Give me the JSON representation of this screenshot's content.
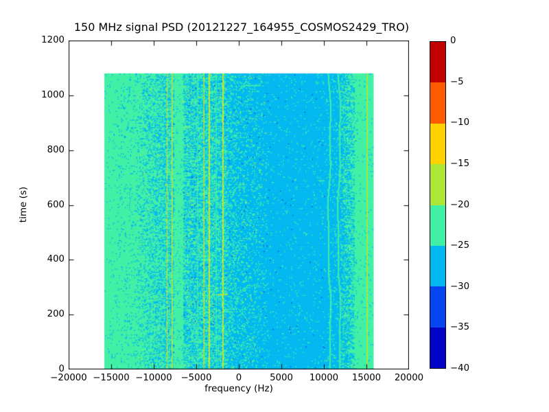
{
  "chart_data": {
    "type": "heatmap",
    "title": "150 MHz signal PSD (20121227_164955_COSMOS2429_TRO)",
    "xlabel": "frequency (Hz)",
    "ylabel": "time (s)",
    "xlim": [
      -20000,
      20000
    ],
    "ylim": [
      0,
      1200
    ],
    "grid": false,
    "xticks": {
      "values": [
        -20000,
        -15000,
        -10000,
        -5000,
        0,
        5000,
        10000,
        15000,
        20000
      ],
      "labels": [
        "−20000",
        "−15000",
        "−10000",
        "−5000",
        "0",
        "5000",
        "10000",
        "15000",
        "20000"
      ]
    },
    "yticks": {
      "values": [
        0,
        200,
        400,
        600,
        800,
        1000,
        1200
      ],
      "labels": [
        "0",
        "200",
        "400",
        "600",
        "800",
        "1000",
        "1200"
      ]
    },
    "colorbar": {
      "position": "right",
      "ticks": {
        "values": [
          0,
          -5,
          -10,
          -15,
          -20,
          -25,
          -30,
          -35,
          -40
        ],
        "labels": [
          "0",
          "−5",
          "−10",
          "−15",
          "−20",
          "−25",
          "−30",
          "−35",
          "−40"
        ]
      },
      "segments": [
        {
          "range": [
            0,
            -5
          ],
          "color": "#c20000"
        },
        {
          "range": [
            -5,
            -10
          ],
          "color": "#ff5a00"
        },
        {
          "range": [
            -10,
            -15
          ],
          "color": "#ffd200"
        },
        {
          "range": [
            -15,
            -20
          ],
          "color": "#aee637"
        },
        {
          "range": [
            -20,
            -25
          ],
          "color": "#41f0a5"
        },
        {
          "range": [
            -25,
            -30
          ],
          "color": "#00b8f0"
        },
        {
          "range": [
            -30,
            -35
          ],
          "color": "#0546f0"
        },
        {
          "range": [
            -35,
            -40
          ],
          "color": "#0101c8"
        }
      ]
    },
    "palette": {
      "green": "#41f0a5",
      "cyan": "#00b8f0",
      "yellowgreen": "#b9e634",
      "yellow": "#ffd200",
      "blue": "#0546f0",
      "lineBright": "#dcee30"
    },
    "extent": {
      "freq": [
        -15800,
        15800
      ],
      "time": [
        0,
        1080
      ]
    },
    "regions": [
      {
        "from": -15800,
        "to": -12000,
        "base": "green",
        "speck": "cyan",
        "d0": 0.02,
        "d1": 0.1
      },
      {
        "from": -12000,
        "to": -8600,
        "base": "green",
        "speck": "cyan",
        "d0": 0.12,
        "d1": 0.45,
        "rare": {
          "yellowgreen": 0.008
        }
      },
      {
        "from": -8600,
        "to": -7650,
        "base": "green",
        "speck": "cyan",
        "d0": 0.45,
        "d1": 0.3,
        "rare": {
          "yellowgreen": 0.012,
          "blue": 0.006
        }
      },
      {
        "from": -7650,
        "to": -6520,
        "base": "green",
        "speck": "cyan",
        "d0": 0.05,
        "d1": 0.05
      },
      {
        "from": -6520,
        "to": -1450,
        "base": "cyan",
        "speck": "green",
        "d0": 0.5,
        "d1": 0.42,
        "rare": {
          "yellowgreen": 0.018,
          "blue": 0.008
        }
      },
      {
        "from": -1450,
        "to": 3400,
        "base": "cyan",
        "speck": "green",
        "d0": 0.3,
        "d1": 0.08,
        "rare": {
          "yellowgreen": 0.004,
          "blue": 0.004
        }
      },
      {
        "from": 3400,
        "to": 10250,
        "base": "cyan",
        "speck": "green",
        "d0": 0.035,
        "d1": 0.03,
        "rare": {
          "blue": 0.003
        }
      },
      {
        "from": 10250,
        "to": 11900,
        "base": "cyan",
        "speck": "green",
        "d0": 0.05,
        "d1": 0.12
      },
      {
        "from": 11900,
        "to": 13650,
        "base": "cyan",
        "speck": "green",
        "d0": 0.22,
        "d1": 0.65,
        "rare": {
          "yellowgreen": 0.008
        }
      },
      {
        "from": 13650,
        "to": 15801,
        "base": "green",
        "speck": "cyan",
        "d0": 0.05,
        "d1": 0.03
      }
    ],
    "lines": [
      {
        "f": -8420,
        "w": 1.5,
        "color": "yellowgreen",
        "p": 0.72
      },
      {
        "f": -7840,
        "w": 1.5,
        "color": "yellowgreen",
        "p": 0.95
      },
      {
        "f": -4840,
        "w": 1.2,
        "color": "green",
        "p": 0.85
      },
      {
        "f": -4100,
        "w": 1.5,
        "color": "yellowgreen",
        "p": 0.9
      },
      {
        "f": -3470,
        "w": 2.0,
        "color": "yellowgreen",
        "p": 1.0,
        "bright": true
      },
      {
        "f": -2660,
        "w": 1.2,
        "color": "green",
        "p": 0.9
      },
      {
        "f": -1860,
        "w": 1.8,
        "color": "yellowgreen",
        "p": 1.0,
        "bright": true
      },
      {
        "f": 10640,
        "w": 2.0,
        "color": "green",
        "p": 1.0,
        "wiggle": true
      },
      {
        "f": 11790,
        "w": 2.0,
        "color": "green",
        "p": 1.0,
        "wiggle": true
      },
      {
        "f": 15080,
        "w": 1.6,
        "color": "yellowgreen",
        "p": 0.97
      }
    ],
    "artifacts": [
      {
        "t": 1038,
        "f0": 500,
        "f1": 2600,
        "color": "green"
      },
      {
        "t": 690,
        "f0": 9300,
        "f1": 10100,
        "color": "green"
      },
      {
        "t": 275,
        "f0": -2500,
        "f1": -1300,
        "color": "yellowgreen"
      }
    ]
  }
}
